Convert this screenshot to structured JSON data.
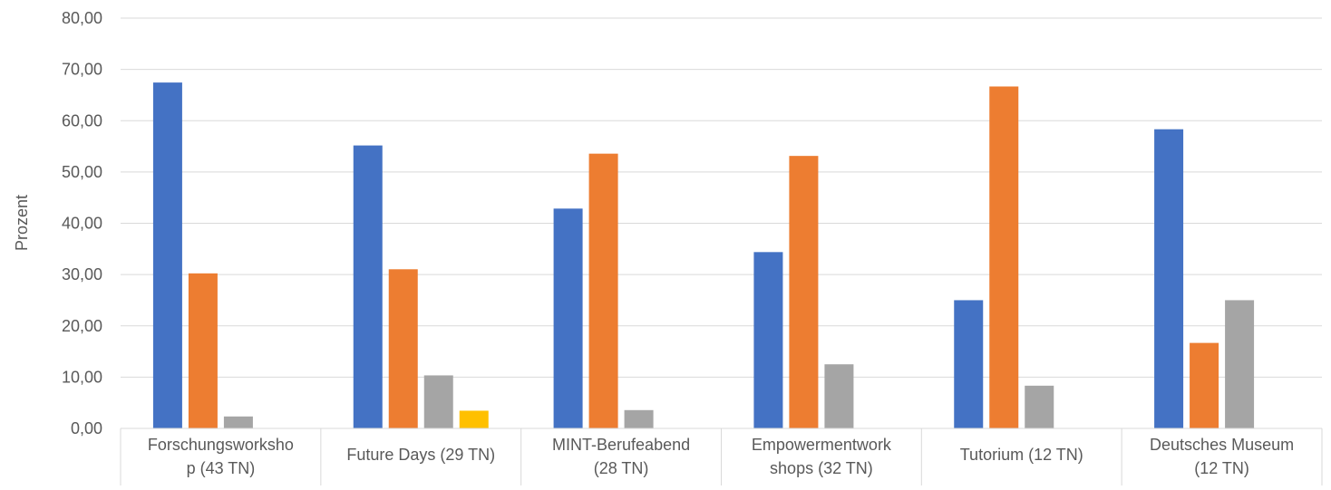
{
  "chart_data": {
    "type": "bar",
    "title": "",
    "xlabel": "",
    "ylabel": "Prozent",
    "ylim": [
      0,
      80
    ],
    "yticks": [
      "0,00",
      "10,00",
      "20,00",
      "30,00",
      "40,00",
      "50,00",
      "60,00",
      "70,00",
      "80,00"
    ],
    "grid": true,
    "legend": "none",
    "categories": [
      [
        "Forschungsworksho",
        "p (43  TN)"
      ],
      [
        "Future Days (29 TN)"
      ],
      [
        "MINT-Berufeabend",
        "(28 TN)"
      ],
      [
        "Empowermentwork",
        "shops (32 TN)"
      ],
      [
        "Tutorium (12 TN)"
      ],
      [
        "Deutsches Museum",
        "(12 TN)"
      ]
    ],
    "series": [
      {
        "color": "#4472C4",
        "values": [
          67.44,
          55.17,
          42.86,
          34.38,
          25.0,
          58.33
        ]
      },
      {
        "color": "#ED7D31",
        "values": [
          30.23,
          31.03,
          53.57,
          53.13,
          66.67,
          16.67
        ]
      },
      {
        "color": "#A5A5A5",
        "values": [
          2.33,
          10.34,
          3.57,
          12.5,
          8.33,
          25.0
        ]
      },
      {
        "color": "#FFC000",
        "values": [
          0,
          3.45,
          0,
          0,
          0,
          0
        ]
      }
    ]
  }
}
